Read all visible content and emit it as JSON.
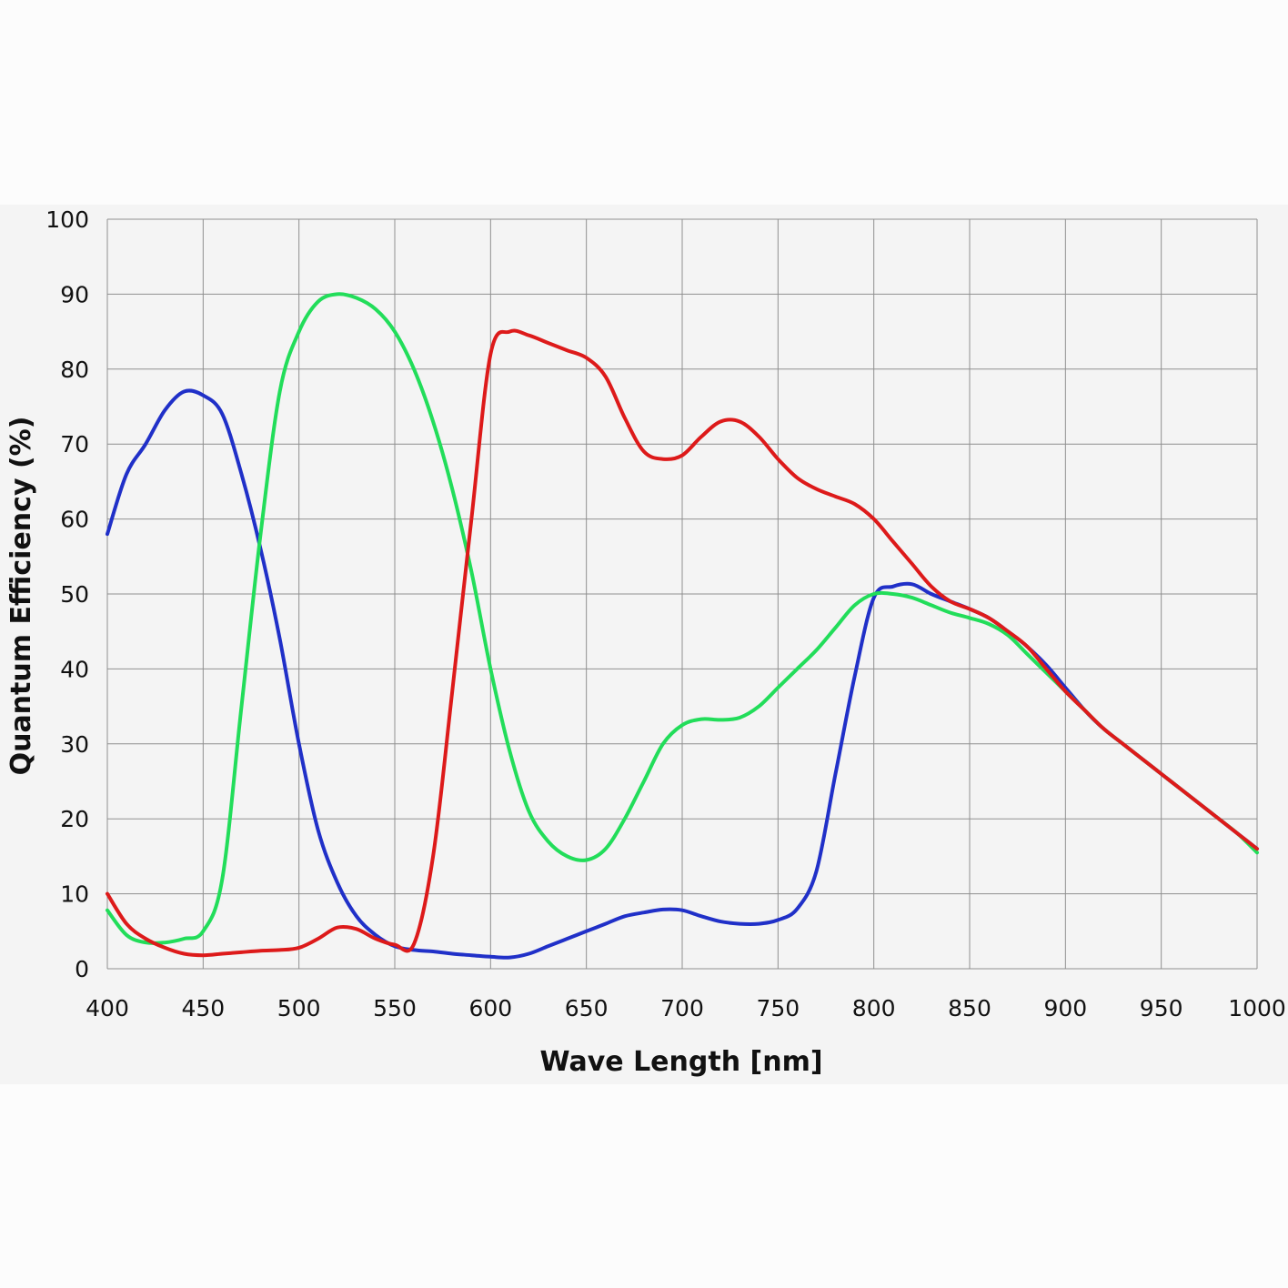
{
  "chart_data": {
    "type": "line",
    "title": "",
    "xlabel": "Wave Length [nm]",
    "ylabel": "Quantum Efficiency (%)",
    "xlim": [
      400,
      1000
    ],
    "ylim": [
      0,
      100
    ],
    "grid": true,
    "legend": "none",
    "xticks": [
      "400",
      "450",
      "500",
      "550",
      "600",
      "650",
      "700",
      "750",
      "800",
      "850",
      "900",
      "950",
      "1000"
    ],
    "yticks": [
      "0",
      "10",
      "20",
      "30",
      "40",
      "50",
      "60",
      "70",
      "80",
      "90",
      "100"
    ],
    "x": [
      400,
      410,
      420,
      430,
      440,
      450,
      460,
      470,
      480,
      490,
      500,
      510,
      520,
      530,
      540,
      550,
      560,
      570,
      580,
      590,
      600,
      610,
      620,
      630,
      640,
      650,
      660,
      670,
      680,
      690,
      700,
      710,
      720,
      730,
      740,
      750,
      760,
      770,
      780,
      790,
      800,
      810,
      820,
      830,
      840,
      850,
      860,
      870,
      880,
      890,
      900,
      910,
      920,
      930,
      940,
      950,
      960,
      970,
      980,
      990,
      1000
    ],
    "series": [
      {
        "color": "#2030c8",
        "values": [
          58,
          66,
          70,
          74.5,
          77,
          76.5,
          74,
          66,
          56,
          44,
          30,
          18.5,
          11.5,
          7,
          4.5,
          3,
          2.5,
          2.3,
          2,
          1.8,
          1.6,
          1.5,
          2,
          3,
          4,
          5,
          6,
          7,
          7.5,
          7.9,
          7.8,
          7,
          6.3,
          6,
          6,
          6.5,
          8,
          13,
          26,
          39,
          49.5,
          51,
          51.3,
          50,
          49,
          48,
          46.8,
          45,
          43,
          40.5,
          37.5,
          34.5,
          32,
          30,
          28,
          26,
          24,
          22,
          20,
          18,
          16
        ]
      },
      {
        "color": "#22dd5a",
        "values": [
          7.8,
          4.5,
          3.5,
          3.5,
          4,
          5,
          12,
          35,
          58,
          77,
          85,
          89,
          90,
          89.5,
          88,
          85,
          80,
          73,
          64,
          53,
          40,
          29,
          21,
          17,
          15,
          14.5,
          16,
          20,
          25,
          30,
          32.5,
          33.3,
          33.2,
          33.5,
          35,
          37.5,
          40,
          42.5,
          45.5,
          48.5,
          50,
          50,
          49.5,
          48.5,
          47.5,
          46.8,
          46,
          44.5,
          42,
          39.5,
          37,
          34.5,
          32,
          30,
          28,
          26,
          24,
          22,
          20,
          18,
          15.5
        ]
      },
      {
        "color": "#dd1a1a",
        "values": [
          10,
          6,
          4,
          2.8,
          2,
          1.8,
          2,
          2.2,
          2.4,
          2.5,
          2.8,
          4,
          5.5,
          5.3,
          4,
          3.2,
          3.3,
          15,
          37,
          60,
          82,
          85,
          84.5,
          83.5,
          82.5,
          81.5,
          79,
          73.5,
          69,
          68,
          68.5,
          71,
          73,
          73,
          71,
          68,
          65.5,
          64,
          63,
          62,
          60,
          57,
          54,
          51,
          49,
          48,
          46.8,
          45,
          43,
          40,
          37,
          34.5,
          32,
          30,
          28,
          26,
          24,
          22,
          20,
          18,
          16
        ]
      }
    ]
  }
}
